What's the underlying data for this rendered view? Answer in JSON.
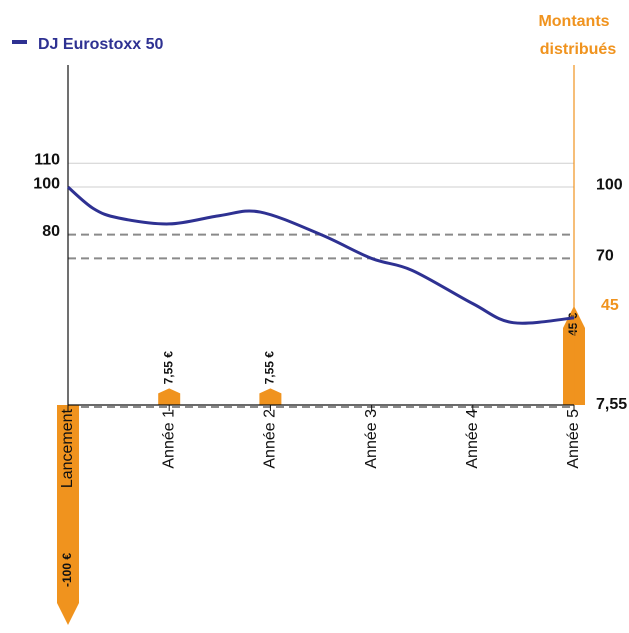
{
  "chart_data": {
    "type": "line",
    "legend": "top-left",
    "right_axis_label": [
      "Montants",
      "distribués"
    ],
    "series": [
      {
        "name": "DJ Eurostoxx 50",
        "color": "#2e3192",
        "x": [
          0,
          0.25,
          0.5,
          1,
          1.5,
          1.9,
          2.5,
          3,
          3.4,
          4,
          4.4,
          5
        ],
        "values": [
          100,
          91,
          87,
          84.5,
          88,
          89.5,
          80,
          70,
          65,
          51,
          43,
          45
        ]
      }
    ],
    "xlim": [
      0,
      5
    ],
    "xticks": [
      {
        "value": 0,
        "label": "Lancement"
      },
      {
        "value": 1,
        "label": "Année 1"
      },
      {
        "value": 2,
        "label": "Année 2"
      },
      {
        "value": 3,
        "label": "Année 3"
      },
      {
        "value": 4,
        "label": "Année 4"
      },
      {
        "value": 5,
        "label": "Année 5"
      }
    ],
    "ylim": [
      8.4,
      151.3
    ],
    "yticks": [
      110,
      100,
      80
    ],
    "y_right_ticks": [
      100,
      70,
      {
        "value": 7.55,
        "label": "7,55"
      }
    ],
    "grid_lines": [
      110,
      100
    ],
    "dashed_lines": [
      80,
      70,
      7.55
    ],
    "annotation": {
      "value": 45,
      "label": "45",
      "color": "#f0931e"
    },
    "flows": {
      "color": "#f0931e",
      "x": [
        0,
        1,
        2,
        5
      ],
      "values": [
        -100,
        7.55,
        7.55,
        45
      ],
      "value_labels": [
        "-100 €",
        "7,55 €",
        "7,55 €",
        "45 €"
      ]
    }
  }
}
